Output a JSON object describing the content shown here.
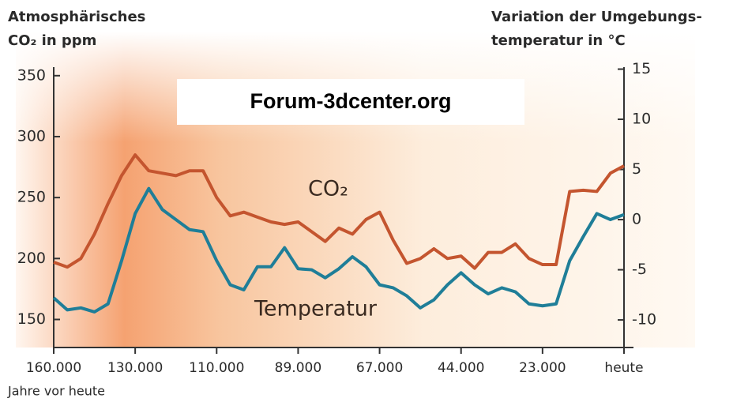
{
  "chart_data": {
    "type": "line",
    "left_axis_title": [
      "Atmosphärisches",
      "CO₂ in ppm"
    ],
    "right_axis_title": [
      "Variation der Umgebungs-",
      "temperatur in °C"
    ],
    "x_label": "Jahre vor heute",
    "watermark": "Forum-3dcenter.org",
    "categories": [
      "160.000",
      null,
      null,
      null,
      null,
      null,
      "130.000",
      null,
      null,
      null,
      null,
      null,
      "110.000",
      null,
      null,
      null,
      null,
      null,
      "89.000",
      null,
      null,
      null,
      null,
      null,
      "67.000",
      null,
      null,
      null,
      null,
      null,
      "44.000",
      null,
      null,
      null,
      null,
      null,
      "23.000",
      null,
      null,
      null,
      null,
      null,
      "heute"
    ],
    "series": [
      {
        "name": "CO₂",
        "color": "#c4552f",
        "values": [
          197,
          193,
          200,
          220,
          245,
          268,
          285,
          272,
          270,
          268,
          272,
          272,
          250,
          235,
          238,
          234,
          230,
          228,
          230,
          222,
          214,
          225,
          220,
          232,
          238,
          215,
          196,
          200,
          208,
          200,
          202,
          192,
          205,
          205,
          212,
          200,
          195,
          195,
          255,
          256,
          255,
          270,
          276
        ]
      },
      {
        "name": "Temperatur",
        "color": "#1f7e98",
        "axis": "y2",
        "values": [
          -7.8,
          -9.0,
          -8.8,
          -9.2,
          -8.4,
          -4.1,
          0.6,
          3.1,
          1.0,
          0,
          -1.0,
          -1.2,
          -4.1,
          -6.5,
          -7.0,
          -4.7,
          -4.7,
          -2.8,
          -4.9,
          -5.0,
          -5.8,
          -4.9,
          -3.7,
          -4.7,
          -6.5,
          -6.8,
          -7.6,
          -8.8,
          -8.0,
          -6.5,
          -5.3,
          -6.5,
          -7.4,
          -6.8,
          -7.2,
          -8.4,
          -8.6,
          -8.4,
          -4.1,
          -1.7,
          0.6,
          0,
          0.5
        ]
      }
    ],
    "ylim": [
      127,
      357
    ],
    "yticks": [
      150,
      200,
      250,
      300,
      350
    ],
    "y2lim": [
      -12.75,
      15.2
    ],
    "y2ticks": [
      -10,
      -5,
      0,
      5,
      10,
      15
    ]
  }
}
